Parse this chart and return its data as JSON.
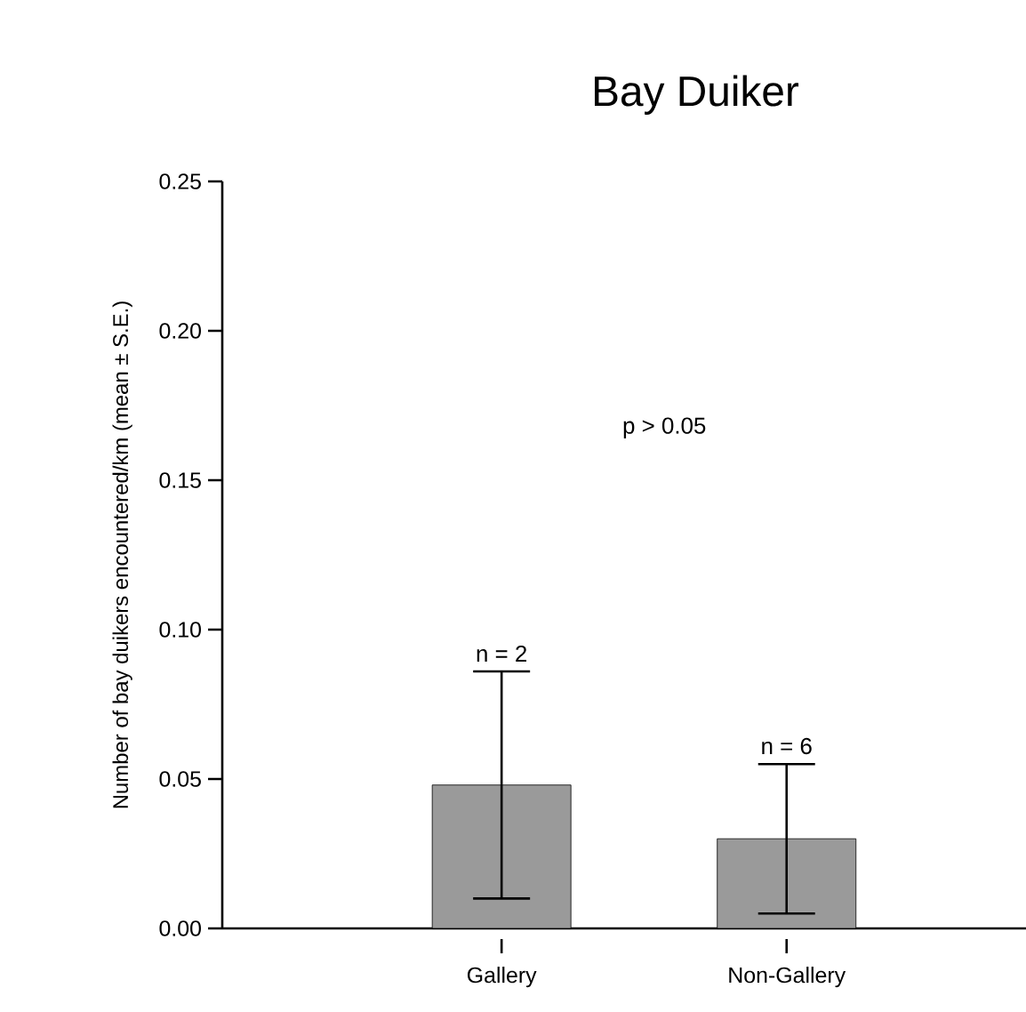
{
  "chart_data": {
    "type": "bar",
    "title": "Bay Duiker",
    "ylabel": "Number of bay duikers encountered/km (mean ± S.E.)",
    "categories": [
      "Gallery",
      "Non-Gallery"
    ],
    "values": [
      0.048,
      0.03
    ],
    "errors": [
      0.038,
      0.025
    ],
    "color": "#9a9a9a",
    "ylim": [
      0,
      0.25
    ],
    "yticks": [
      {
        "value": 0,
        "label": "0.00"
      },
      {
        "value": 0.05,
        "label": "0.05"
      },
      {
        "value": 0.1,
        "label": "0.10"
      },
      {
        "value": 0.15,
        "label": "0.15"
      },
      {
        "value": 0.2,
        "label": "0.20"
      },
      {
        "value": 0.25,
        "label": "0.25"
      }
    ],
    "annotations": [
      "p > 0.05",
      "n = 2",
      "n = 6"
    ],
    "grid": false
  }
}
